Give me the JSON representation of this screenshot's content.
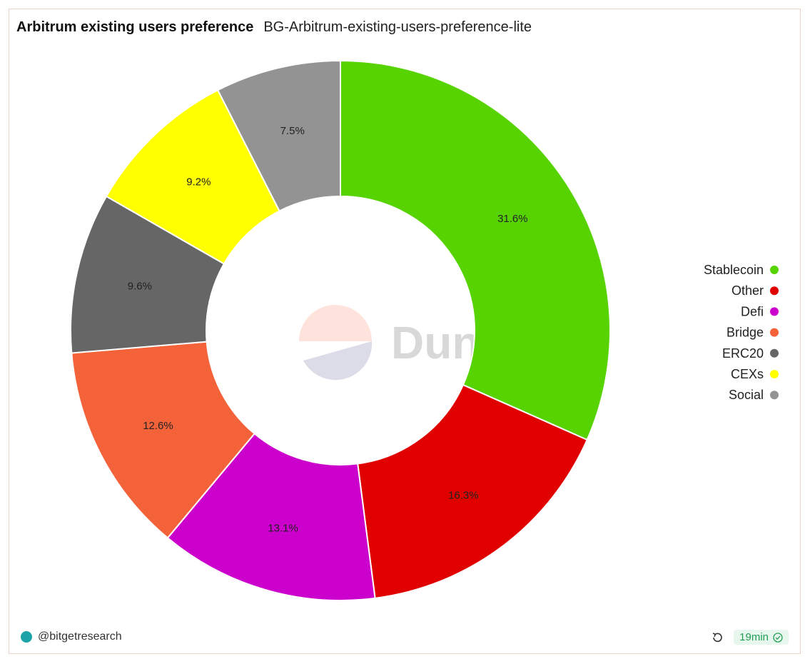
{
  "header": {
    "title": "Arbitrum existing users preference",
    "subtitle": "BG-Arbitrum-existing-users-preference-lite"
  },
  "watermark": "Dune",
  "footer": {
    "author": "@bitgetresearch",
    "refresh_icon": "refresh-icon",
    "age": "19min",
    "status_icon": "check-circle-icon"
  },
  "chart_data": {
    "type": "pie",
    "donut": true,
    "legend_position": "right",
    "slices": [
      {
        "name": "Stablecoin",
        "value": 31.6,
        "label": "31.6%",
        "color": "#56d300"
      },
      {
        "name": "Other",
        "value": 16.3,
        "label": "16.3%",
        "color": "#e00000"
      },
      {
        "name": "Defi",
        "value": 13.1,
        "label": "13.1%",
        "color": "#cc00cc"
      },
      {
        "name": "Bridge",
        "value": 12.6,
        "label": "12.6%",
        "color": "#f4623a"
      },
      {
        "name": "ERC20",
        "value": 9.6,
        "label": "9.6%",
        "color": "#666666"
      },
      {
        "name": "CEXs",
        "value": 9.2,
        "label": "9.2%",
        "color": "#ffff00"
      },
      {
        "name": "Social",
        "value": 7.5,
        "label": "7.5%",
        "color": "#939393"
      }
    ]
  }
}
